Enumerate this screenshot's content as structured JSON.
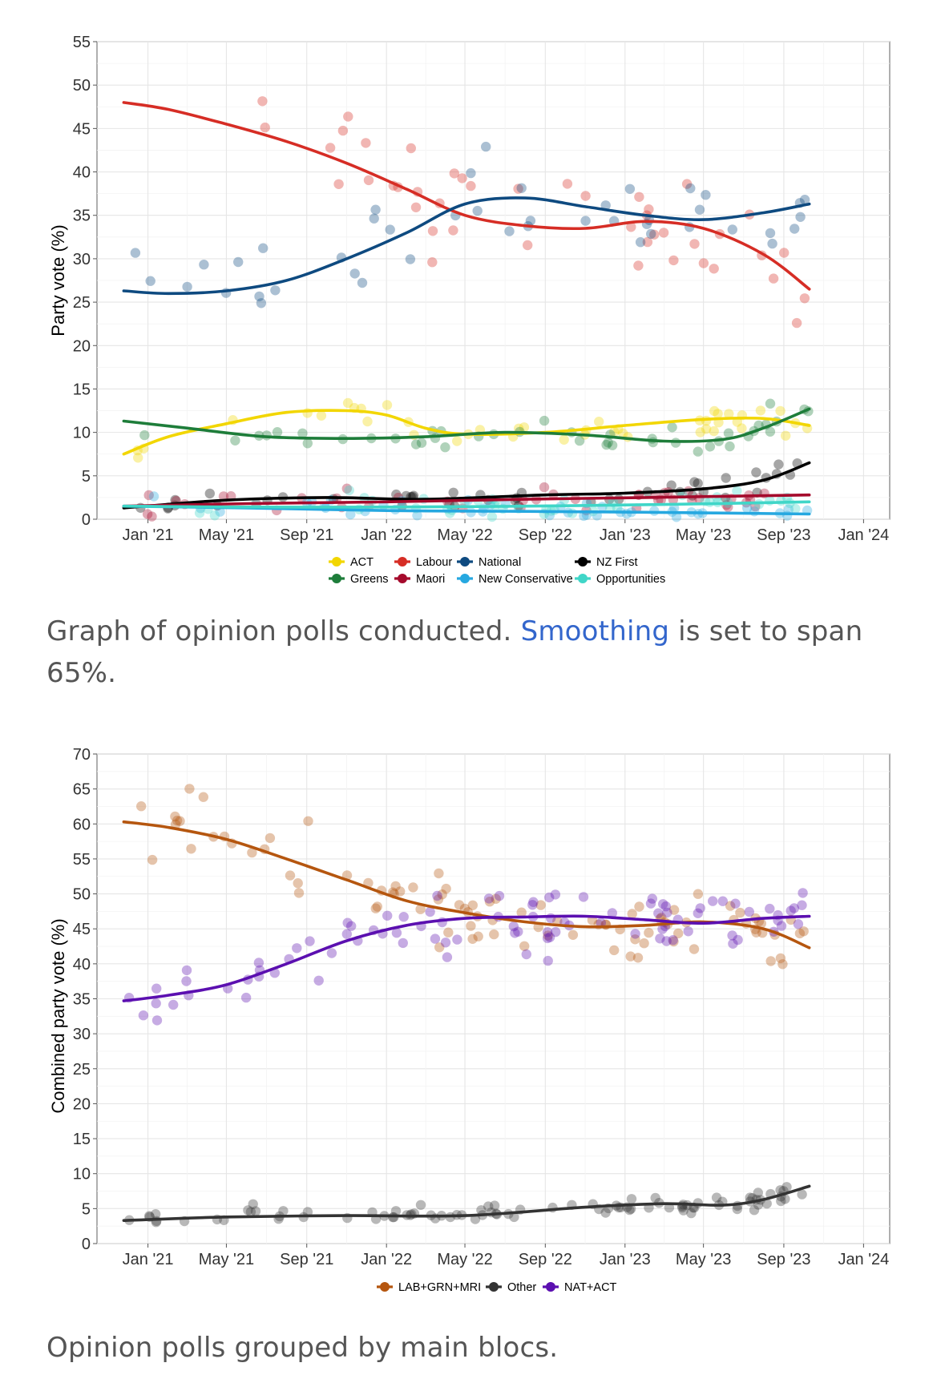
{
  "captions": {
    "chart1_prefix": "Graph of opinion polls conducted. ",
    "chart1_link": "Smoothing",
    "chart1_suffix": " is set to span 65%.",
    "chart2": "Opinion polls grouped by main blocs."
  },
  "chart_data": [
    {
      "type": "scatter",
      "ylabel": "Party vote (%)",
      "xlabel": "",
      "ylim": [
        0,
        55
      ],
      "yticks": [
        0,
        5,
        10,
        15,
        20,
        25,
        30,
        35,
        40,
        45,
        50,
        55
      ],
      "xlim": [
        "2020-10-15",
        "2024-02-10"
      ],
      "xticks": [
        {
          "date": "2021-01-01",
          "label": "Jan '21"
        },
        {
          "date": "2021-05-01",
          "label": "May '21"
        },
        {
          "date": "2021-09-01",
          "label": "Sep '21"
        },
        {
          "date": "2022-01-01",
          "label": "Jan '22"
        },
        {
          "date": "2022-05-01",
          "label": "May '22"
        },
        {
          "date": "2022-09-01",
          "label": "Sep '22"
        },
        {
          "date": "2023-01-01",
          "label": "Jan '23"
        },
        {
          "date": "2023-05-01",
          "label": "May '23"
        },
        {
          "date": "2023-09-01",
          "label": "Sep '23"
        },
        {
          "date": "2024-01-01",
          "label": "Jan '24"
        }
      ],
      "grid": true,
      "legend_position": "bottom",
      "series": [
        {
          "name": "ACT",
          "color": "#f2d600",
          "smooth": [
            [
              "2020-11-25",
              7.5
            ],
            [
              "2021-02-01",
              9.5
            ],
            [
              "2021-05-01",
              11.0
            ],
            [
              "2021-08-01",
              12.3
            ],
            [
              "2021-11-01",
              12.5
            ],
            [
              "2022-01-01",
              12.0
            ],
            [
              "2022-03-01",
              10.5
            ],
            [
              "2022-05-01",
              9.8
            ],
            [
              "2022-09-01",
              10.0
            ],
            [
              "2023-01-01",
              10.8
            ],
            [
              "2023-05-01",
              11.5
            ],
            [
              "2023-08-01",
              11.6
            ],
            [
              "2023-10-10",
              10.8
            ]
          ]
        },
        {
          "name": "Labour",
          "color": "#d62d25",
          "smooth": [
            [
              "2020-11-25",
              48.0
            ],
            [
              "2021-02-01",
              47.2
            ],
            [
              "2021-05-01",
              45.5
            ],
            [
              "2021-08-01",
              43.5
            ],
            [
              "2021-11-01",
              41.0
            ],
            [
              "2022-02-01",
              38.0
            ],
            [
              "2022-05-01",
              35.0
            ],
            [
              "2022-08-01",
              33.8
            ],
            [
              "2022-11-01",
              33.5
            ],
            [
              "2023-02-01",
              34.3
            ],
            [
              "2023-05-01",
              33.5
            ],
            [
              "2023-08-01",
              30.5
            ],
            [
              "2023-10-10",
              26.5
            ]
          ]
        },
        {
          "name": "National",
          "color": "#0e4a80",
          "smooth": [
            [
              "2020-11-25",
              26.3
            ],
            [
              "2021-02-01",
              26.0
            ],
            [
              "2021-05-01",
              26.3
            ],
            [
              "2021-08-01",
              27.5
            ],
            [
              "2021-11-01",
              30.0
            ],
            [
              "2022-02-01",
              33.0
            ],
            [
              "2022-05-01",
              36.3
            ],
            [
              "2022-08-01",
              37.0
            ],
            [
              "2022-11-01",
              36.0
            ],
            [
              "2023-02-01",
              35.0
            ],
            [
              "2023-05-01",
              34.5
            ],
            [
              "2023-08-01",
              35.3
            ],
            [
              "2023-10-10",
              36.3
            ]
          ]
        },
        {
          "name": "NZ First",
          "color": "#000000",
          "smooth": [
            [
              "2020-11-25",
              1.3
            ],
            [
              "2021-05-01",
              2.2
            ],
            [
              "2021-10-01",
              2.5
            ],
            [
              "2022-03-01",
              2.3
            ],
            [
              "2022-09-01",
              2.8
            ],
            [
              "2023-01-01",
              3.0
            ],
            [
              "2023-05-01",
              3.5
            ],
            [
              "2023-08-01",
              4.5
            ],
            [
              "2023-10-10",
              6.5
            ]
          ]
        },
        {
          "name": "Greens",
          "color": "#1e7d3a",
          "smooth": [
            [
              "2020-11-25",
              11.3
            ],
            [
              "2021-03-01",
              10.5
            ],
            [
              "2021-07-01",
              9.5
            ],
            [
              "2021-11-01",
              9.3
            ],
            [
              "2022-03-01",
              9.5
            ],
            [
              "2022-07-01",
              10.0
            ],
            [
              "2022-11-01",
              9.7
            ],
            [
              "2023-03-01",
              9.0
            ],
            [
              "2023-06-01",
              9.2
            ],
            [
              "2023-08-01",
              10.5
            ],
            [
              "2023-10-10",
              12.7
            ]
          ]
        },
        {
          "name": "Maori",
          "color": "#a50a2c",
          "smooth": [
            [
              "2020-11-25",
              1.5
            ],
            [
              "2021-06-01",
              1.8
            ],
            [
              "2022-01-01",
              2.0
            ],
            [
              "2022-08-01",
              2.3
            ],
            [
              "2023-02-01",
              2.5
            ],
            [
              "2023-10-10",
              2.8
            ]
          ]
        },
        {
          "name": "New Conservative",
          "color": "#26a8e0",
          "smooth": [
            [
              "2020-11-25",
              1.5
            ],
            [
              "2021-06-01",
              1.3
            ],
            [
              "2022-01-01",
              1.0
            ],
            [
              "2022-08-01",
              0.9
            ],
            [
              "2023-02-01",
              0.8
            ],
            [
              "2023-10-10",
              0.6
            ]
          ]
        },
        {
          "name": "Opportunities",
          "color": "#40d6c8",
          "smooth": [
            [
              "2020-11-25",
              1.5
            ],
            [
              "2021-06-01",
              1.4
            ],
            [
              "2022-01-01",
              1.4
            ],
            [
              "2022-08-01",
              1.5
            ],
            [
              "2023-03-01",
              1.7
            ],
            [
              "2023-10-10",
              2.0
            ]
          ]
        }
      ]
    },
    {
      "type": "scatter",
      "ylabel": "Combined party vote (%)",
      "xlabel": "",
      "ylim": [
        0,
        70
      ],
      "yticks": [
        0,
        5,
        10,
        15,
        20,
        25,
        30,
        35,
        40,
        45,
        50,
        55,
        60,
        65,
        70
      ],
      "xlim": [
        "2020-10-15",
        "2024-02-10"
      ],
      "xticks": [
        {
          "date": "2021-01-01",
          "label": "Jan '21"
        },
        {
          "date": "2021-05-01",
          "label": "May '21"
        },
        {
          "date": "2021-09-01",
          "label": "Sep '21"
        },
        {
          "date": "2022-01-01",
          "label": "Jan '22"
        },
        {
          "date": "2022-05-01",
          "label": "May '22"
        },
        {
          "date": "2022-09-01",
          "label": "Sep '22"
        },
        {
          "date": "2023-01-01",
          "label": "Jan '23"
        },
        {
          "date": "2023-05-01",
          "label": "May '23"
        },
        {
          "date": "2023-09-01",
          "label": "Sep '23"
        },
        {
          "date": "2024-01-01",
          "label": "Jan '24"
        }
      ],
      "grid": true,
      "legend_position": "bottom",
      "series": [
        {
          "name": "LAB+GRN+MRI",
          "color": "#b5560f",
          "smooth": [
            [
              "2020-11-25",
              60.3
            ],
            [
              "2021-02-01",
              59.5
            ],
            [
              "2021-05-01",
              57.8
            ],
            [
              "2021-08-01",
              55.0
            ],
            [
              "2021-11-01",
              52.0
            ],
            [
              "2022-02-01",
              49.0
            ],
            [
              "2022-05-01",
              47.3
            ],
            [
              "2022-08-01",
              46.0
            ],
            [
              "2022-11-01",
              45.3
            ],
            [
              "2023-02-01",
              45.5
            ],
            [
              "2023-05-01",
              46.0
            ],
            [
              "2023-08-01",
              45.0
            ],
            [
              "2023-10-10",
              42.3
            ]
          ]
        },
        {
          "name": "Other",
          "color": "#333333",
          "smooth": [
            [
              "2020-11-25",
              3.3
            ],
            [
              "2021-05-01",
              3.8
            ],
            [
              "2021-11-01",
              4.0
            ],
            [
              "2022-05-01",
              4.0
            ],
            [
              "2022-11-01",
              5.2
            ],
            [
              "2023-03-01",
              5.7
            ],
            [
              "2023-06-01",
              5.5
            ],
            [
              "2023-08-01",
              6.3
            ],
            [
              "2023-10-10",
              8.2
            ]
          ]
        },
        {
          "name": "NAT+ACT",
          "color": "#5b0fb0",
          "smooth": [
            [
              "2020-11-25",
              34.7
            ],
            [
              "2021-02-01",
              35.5
            ],
            [
              "2021-05-01",
              37.0
            ],
            [
              "2021-08-01",
              40.0
            ],
            [
              "2021-11-01",
              43.3
            ],
            [
              "2022-02-01",
              45.5
            ],
            [
              "2022-05-01",
              46.5
            ],
            [
              "2022-08-01",
              46.7
            ],
            [
              "2022-11-01",
              46.8
            ],
            [
              "2023-02-01",
              46.3
            ],
            [
              "2023-05-01",
              45.8
            ],
            [
              "2023-08-01",
              46.5
            ],
            [
              "2023-10-10",
              46.8
            ]
          ]
        }
      ]
    }
  ]
}
